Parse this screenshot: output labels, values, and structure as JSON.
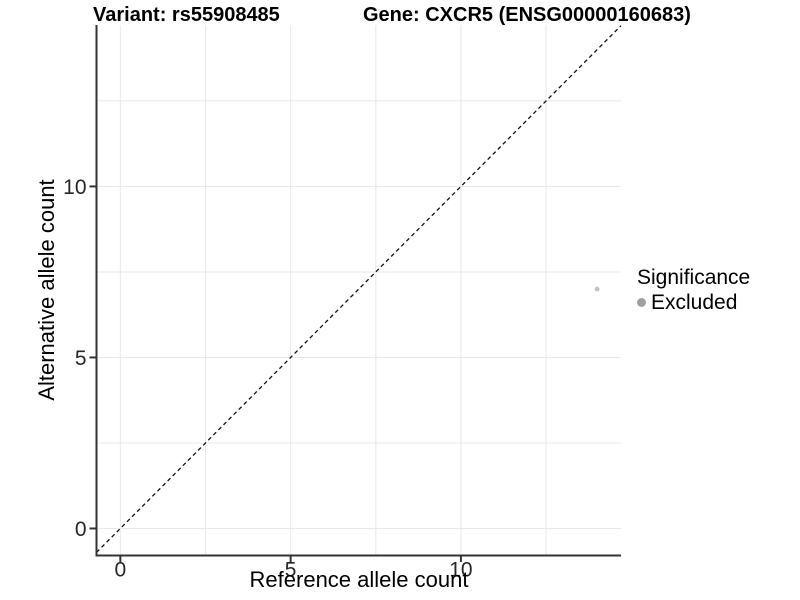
{
  "header": {
    "variant_title": "Variant: rs55908485",
    "gene_title": "Gene: CXCR5 (ENSG00000160683)"
  },
  "chart_data": {
    "type": "scatter",
    "xlabel": "Reference allele count",
    "ylabel": "Alternative allele count",
    "x_ticks": [
      0,
      5,
      10
    ],
    "y_ticks": [
      0,
      5,
      10
    ],
    "x_gridlines": [
      0,
      2.5,
      5,
      7.5,
      10,
      12.5
    ],
    "y_gridlines": [
      0,
      2.5,
      5,
      7.5,
      10,
      12.5
    ],
    "xlim": [
      -0.7,
      14.7
    ],
    "ylim": [
      -0.79,
      14.72
    ],
    "grid": true,
    "identity_line": {
      "slope": 1,
      "intercept": 0,
      "linetype": "dashed"
    },
    "points": [
      {
        "x": 14,
        "y": 7,
        "significance": "Excluded"
      }
    ],
    "legend": {
      "title": "Significance",
      "position": "right",
      "items": [
        {
          "label": "Excluded",
          "color": "#a0a0a0"
        }
      ]
    }
  },
  "colors": {
    "background": "#ffffff",
    "axis_line": "#333333",
    "tick_mark": "#333333",
    "tick_label": "#262626",
    "gridline": "#e8e8e8",
    "identity_line": "#111111",
    "point_fill": "#c4c4c4"
  }
}
